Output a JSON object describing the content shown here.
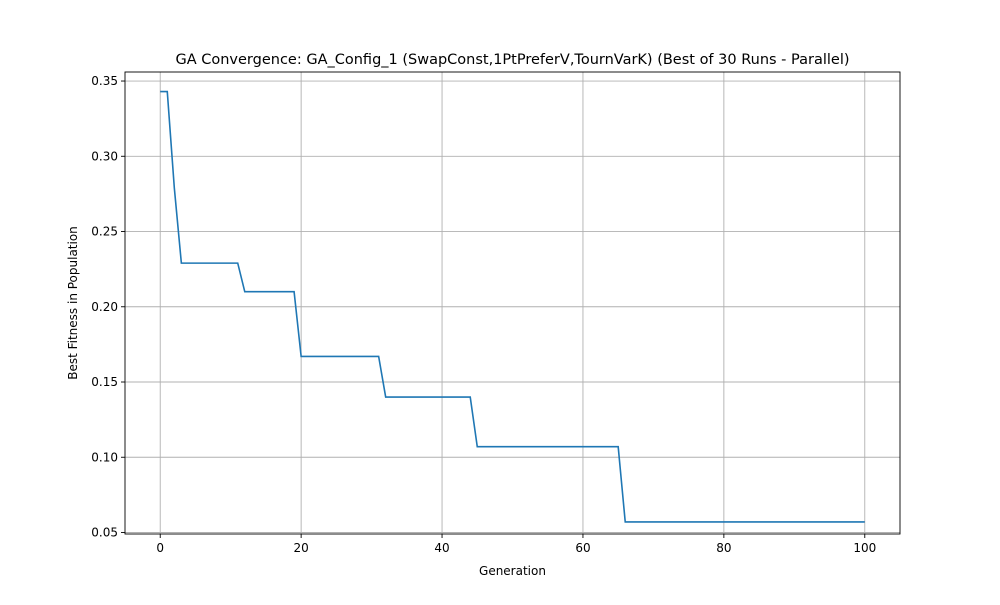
{
  "chart_data": {
    "type": "line",
    "title": "GA Convergence: GA_Config_1 (SwapConst,1PtPreferV,TournVarK) (Best of 30 Runs - Parallel)",
    "xlabel": "Generation",
    "ylabel": "Best Fitness in Population",
    "xlim": [
      -5,
      105
    ],
    "ylim": [
      0.049,
      0.356
    ],
    "xticks": [
      0,
      20,
      40,
      60,
      80,
      100
    ],
    "xtick_labels": [
      "0",
      "20",
      "40",
      "60",
      "80",
      "100"
    ],
    "yticks": [
      0.05,
      0.1,
      0.15,
      0.2,
      0.25,
      0.3,
      0.35
    ],
    "ytick_labels": [
      "0.05",
      "0.10",
      "0.15",
      "0.20",
      "0.25",
      "0.30",
      "0.35"
    ],
    "grid": true,
    "series": [
      {
        "color": "#1f77b4",
        "x": [
          0,
          1,
          2,
          3,
          11,
          12,
          19,
          20,
          31,
          32,
          44,
          45,
          65,
          66,
          100
        ],
        "y": [
          0.343,
          0.343,
          0.279,
          0.229,
          0.229,
          0.21,
          0.21,
          0.167,
          0.167,
          0.14,
          0.14,
          0.107,
          0.107,
          0.057,
          0.057
        ]
      }
    ]
  }
}
